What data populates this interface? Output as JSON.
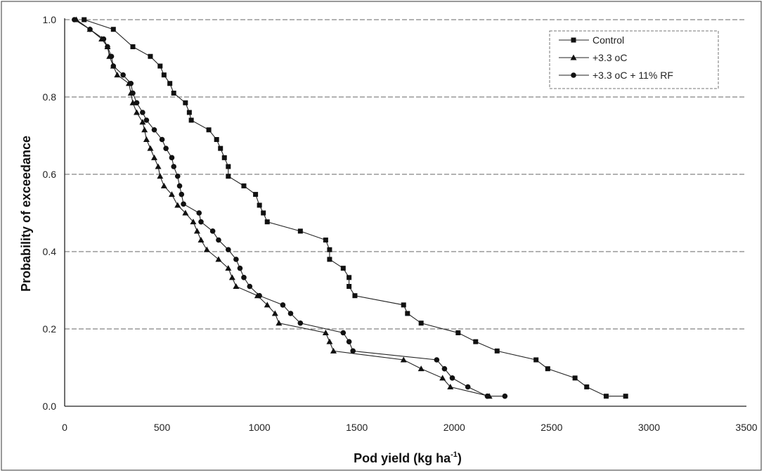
{
  "chart_data": {
    "type": "line",
    "title": "",
    "xlabel": "Pod yield (kg ha",
    "xlabel_sup": "-1",
    "xlabel_end": ")",
    "ylabel": "Probability of exceedance",
    "xlim": [
      0,
      3500
    ],
    "ylim": [
      0,
      1.0
    ],
    "x_ticks": [
      "0",
      "500",
      "1000",
      "1500",
      "2000",
      "2500",
      "3000",
      "3500"
    ],
    "y_ticks": [
      "0.0",
      "0.2",
      "0.4",
      "0.6",
      "0.8",
      "1.0"
    ],
    "grid": "horizontal dashed",
    "legend_position": "top-right",
    "series": [
      {
        "name": "Control",
        "marker": "square",
        "points": [
          [
            100,
            1.0
          ],
          [
            250,
            0.975
          ],
          [
            350,
            0.93
          ],
          [
            440,
            0.905
          ],
          [
            490,
            0.88
          ],
          [
            510,
            0.857
          ],
          [
            540,
            0.835
          ],
          [
            560,
            0.81
          ],
          [
            620,
            0.785
          ],
          [
            640,
            0.76
          ],
          [
            650,
            0.74
          ],
          [
            740,
            0.715
          ],
          [
            780,
            0.69
          ],
          [
            800,
            0.667
          ],
          [
            820,
            0.643
          ],
          [
            840,
            0.62
          ],
          [
            840,
            0.595
          ],
          [
            920,
            0.57
          ],
          [
            980,
            0.548
          ],
          [
            1000,
            0.52
          ],
          [
            1020,
            0.5
          ],
          [
            1040,
            0.477
          ],
          [
            1210,
            0.453
          ],
          [
            1340,
            0.43
          ],
          [
            1360,
            0.405
          ],
          [
            1360,
            0.38
          ],
          [
            1430,
            0.357
          ],
          [
            1460,
            0.333
          ],
          [
            1460,
            0.31
          ],
          [
            1490,
            0.286
          ],
          [
            1740,
            0.262
          ],
          [
            1760,
            0.24
          ],
          [
            1830,
            0.215
          ],
          [
            2020,
            0.19
          ],
          [
            2110,
            0.167
          ],
          [
            2220,
            0.143
          ],
          [
            2420,
            0.12
          ],
          [
            2480,
            0.097
          ],
          [
            2620,
            0.073
          ],
          [
            2680,
            0.05
          ],
          [
            2780,
            0.026
          ],
          [
            2880,
            0.026
          ]
        ]
      },
      {
        "name": "+3.3 oC",
        "marker": "triangle",
        "points": [
          [
            60,
            1.0
          ],
          [
            130,
            0.975
          ],
          [
            190,
            0.95
          ],
          [
            220,
            0.93
          ],
          [
            230,
            0.905
          ],
          [
            250,
            0.88
          ],
          [
            270,
            0.857
          ],
          [
            330,
            0.835
          ],
          [
            340,
            0.81
          ],
          [
            350,
            0.785
          ],
          [
            370,
            0.76
          ],
          [
            400,
            0.735
          ],
          [
            410,
            0.715
          ],
          [
            420,
            0.69
          ],
          [
            440,
            0.667
          ],
          [
            460,
            0.643
          ],
          [
            480,
            0.62
          ],
          [
            490,
            0.595
          ],
          [
            510,
            0.57
          ],
          [
            550,
            0.548
          ],
          [
            580,
            0.52
          ],
          [
            620,
            0.5
          ],
          [
            660,
            0.477
          ],
          [
            680,
            0.453
          ],
          [
            700,
            0.43
          ],
          [
            730,
            0.405
          ],
          [
            790,
            0.38
          ],
          [
            840,
            0.357
          ],
          [
            860,
            0.333
          ],
          [
            880,
            0.31
          ],
          [
            990,
            0.286
          ],
          [
            1040,
            0.262
          ],
          [
            1080,
            0.24
          ],
          [
            1100,
            0.215
          ],
          [
            1340,
            0.19
          ],
          [
            1360,
            0.167
          ],
          [
            1380,
            0.143
          ],
          [
            1740,
            0.12
          ],
          [
            1830,
            0.097
          ],
          [
            1940,
            0.073
          ],
          [
            1980,
            0.05
          ],
          [
            2180,
            0.026
          ]
        ]
      },
      {
        "name": "+3.3 oC + 11% RF",
        "marker": "circle",
        "points": [
          [
            50,
            1.0
          ],
          [
            130,
            0.975
          ],
          [
            200,
            0.95
          ],
          [
            220,
            0.93
          ],
          [
            240,
            0.905
          ],
          [
            250,
            0.88
          ],
          [
            300,
            0.857
          ],
          [
            340,
            0.835
          ],
          [
            350,
            0.81
          ],
          [
            370,
            0.785
          ],
          [
            400,
            0.76
          ],
          [
            420,
            0.74
          ],
          [
            460,
            0.715
          ],
          [
            500,
            0.69
          ],
          [
            520,
            0.667
          ],
          [
            550,
            0.643
          ],
          [
            560,
            0.62
          ],
          [
            580,
            0.595
          ],
          [
            590,
            0.57
          ],
          [
            600,
            0.548
          ],
          [
            610,
            0.523
          ],
          [
            690,
            0.5
          ],
          [
            700,
            0.477
          ],
          [
            760,
            0.453
          ],
          [
            790,
            0.43
          ],
          [
            840,
            0.405
          ],
          [
            880,
            0.38
          ],
          [
            900,
            0.357
          ],
          [
            920,
            0.333
          ],
          [
            950,
            0.31
          ],
          [
            1000,
            0.286
          ],
          [
            1120,
            0.262
          ],
          [
            1160,
            0.24
          ],
          [
            1210,
            0.215
          ],
          [
            1430,
            0.19
          ],
          [
            1460,
            0.167
          ],
          [
            1480,
            0.143
          ],
          [
            1910,
            0.12
          ],
          [
            1950,
            0.097
          ],
          [
            1990,
            0.073
          ],
          [
            2070,
            0.05
          ],
          [
            2170,
            0.026
          ],
          [
            2260,
            0.026
          ]
        ]
      }
    ]
  }
}
